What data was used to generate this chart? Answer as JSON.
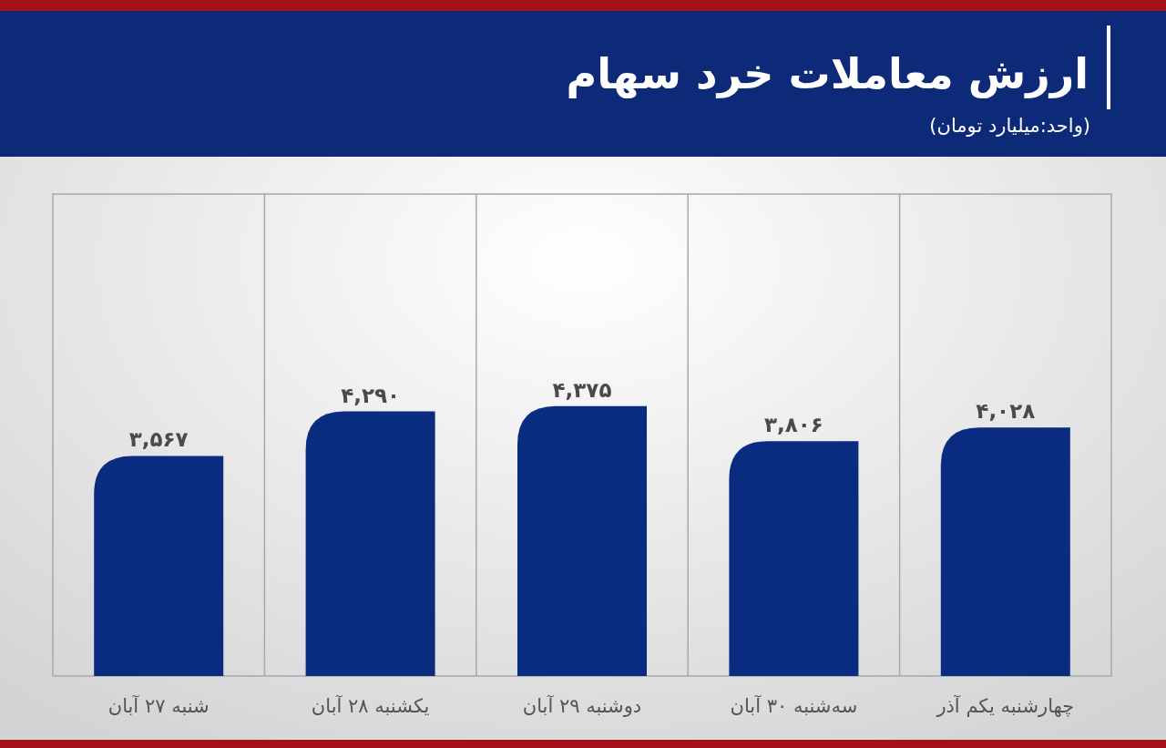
{
  "chart_data": {
    "type": "bar",
    "title": "ارزش معاملات خرد سهام",
    "subtitle": "(واحد:میلیارد تومان)",
    "categories": [
      "شنبه ۲۷ آبان",
      "یکشنبه ۲۸ آبان",
      "دوشنبه ۲۹ آبان",
      "سه‌شنبه ۳۰ آبان",
      "چهارشنبه یکم آذر"
    ],
    "values": [
      3567,
      4290,
      4375,
      3806,
      4028
    ],
    "value_labels": [
      "۳,۵۶۷",
      "۴,۲۹۰",
      "۴,۳۷۵",
      "۳,۸۰۶",
      "۴,۰۲۸"
    ],
    "color": "#0a2c80",
    "grid": "x"
  }
}
